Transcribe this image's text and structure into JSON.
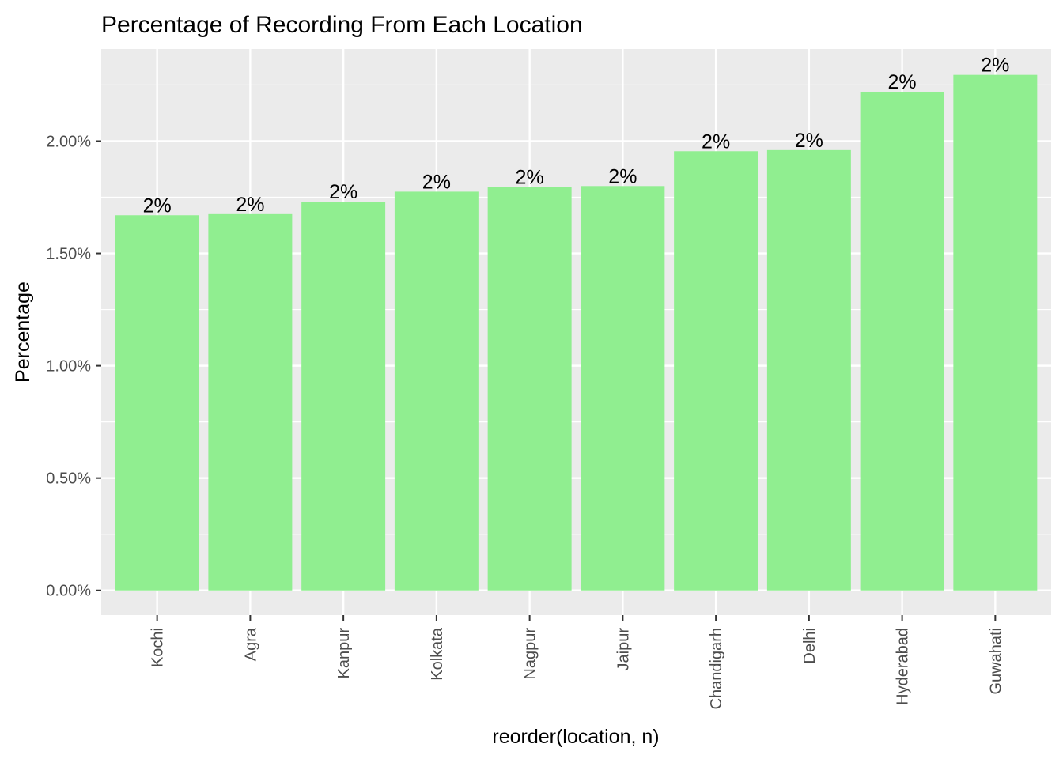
{
  "chart_data": {
    "type": "bar",
    "title": "Percentage of Recording From Each Location",
    "xlabel": "reorder(location, n)",
    "ylabel": "Percentage",
    "categories": [
      "Kochi",
      "Agra",
      "Kanpur",
      "Kolkata",
      "Nagpur",
      "Jaipur",
      "Chandigarh",
      "Delhi",
      "Hyderabad",
      "Guwahati"
    ],
    "values": [
      1.67,
      1.675,
      1.73,
      1.775,
      1.795,
      1.8,
      1.955,
      1.96,
      2.22,
      2.295
    ],
    "value_unit": "%",
    "data_labels": [
      "2%",
      "2%",
      "2%",
      "2%",
      "2%",
      "2%",
      "2%",
      "2%",
      "2%",
      "2%"
    ],
    "ylim": [
      -0.11,
      2.41
    ],
    "yticks": [
      0,
      0.5,
      1.0,
      1.5,
      2.0
    ],
    "ytick_labels": [
      "0.00%",
      "0.50%",
      "1.00%",
      "1.50%",
      "2.00%"
    ],
    "grid": true,
    "legend": "none",
    "colors": {
      "bar": "#90ee90",
      "panel_background": "#ebebeb",
      "grid_major": "#ffffff",
      "tick_label": "#4d4d4d"
    }
  }
}
